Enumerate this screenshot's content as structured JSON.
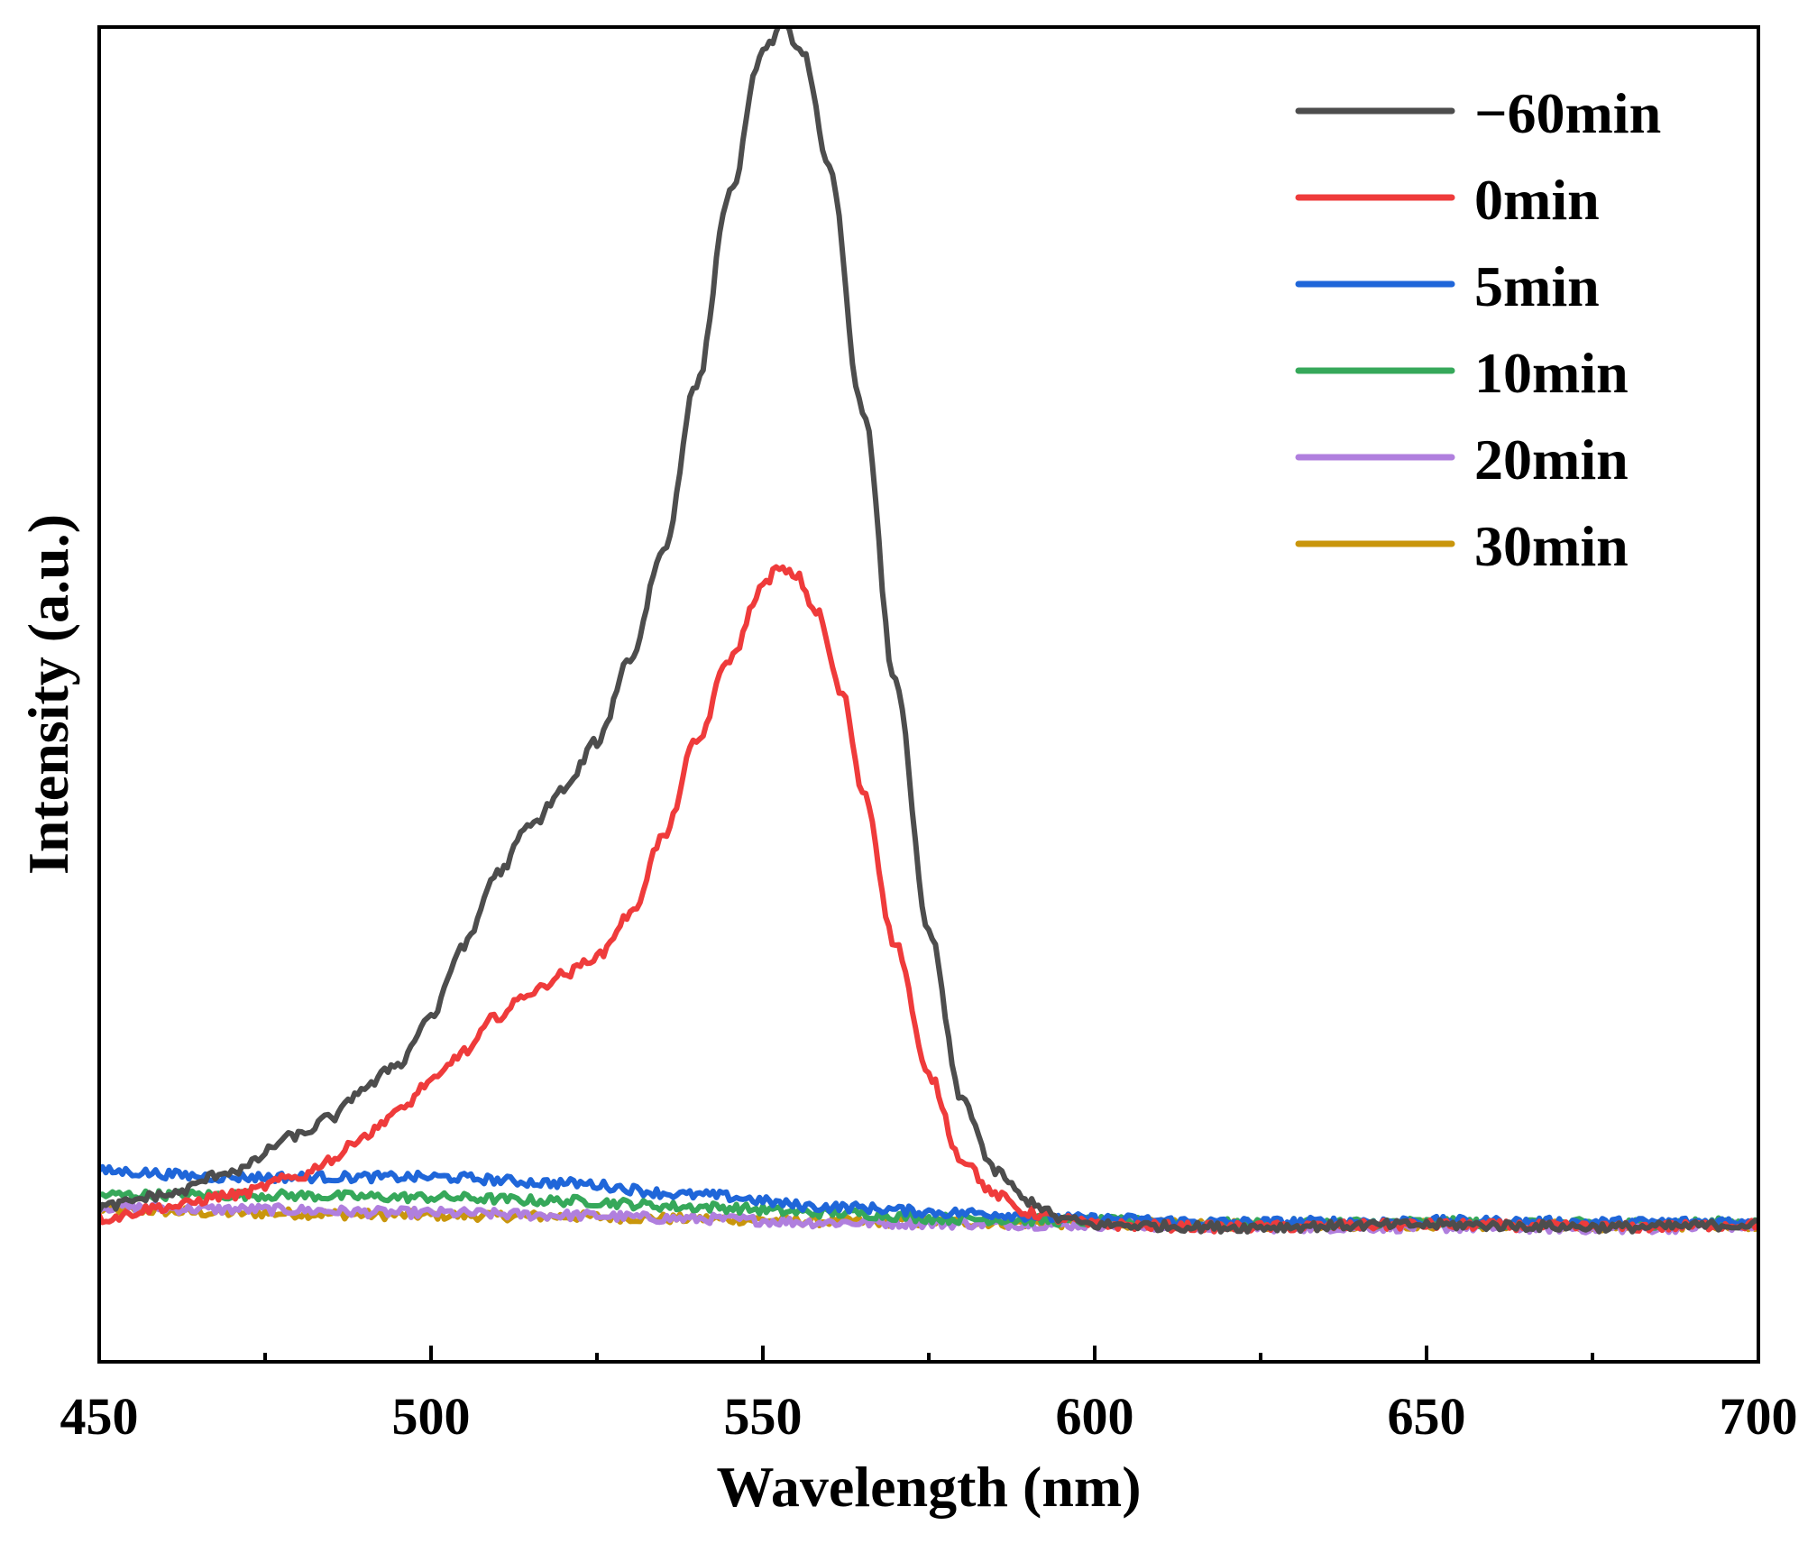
{
  "chart_data": {
    "type": "line",
    "title": "",
    "xlabel": "Wavelength (nm)",
    "ylabel": "Intensity (a.u.)",
    "xlim": [
      450,
      700
    ],
    "ylim": [
      -0.12,
      1.0
    ],
    "x_ticks": [
      450,
      500,
      550,
      600,
      650,
      700
    ],
    "x_tick_labels": [
      "450",
      "500",
      "550",
      "600",
      "650",
      "700"
    ],
    "x_minor_ticks": [
      475,
      525,
      575,
      625,
      675
    ],
    "y_ticks_shown": false,
    "grid": false,
    "legend_position": "top-right",
    "series": [
      {
        "name": "−60min",
        "color": "#4d4d4d",
        "x": [
          450,
          460,
          470,
          480,
          485,
          490,
          495,
          500,
          505,
          510,
          515,
          520,
          525,
          530,
          535,
          540,
          545,
          550,
          553,
          556,
          560,
          565,
          570,
          575,
          580,
          585,
          590,
          595,
          600,
          620,
          650,
          680,
          700
        ],
        "values": [
          0.01,
          0.02,
          0.04,
          0.07,
          0.085,
          0.11,
          0.13,
          0.17,
          0.23,
          0.29,
          0.33,
          0.36,
          0.4,
          0.47,
          0.56,
          0.7,
          0.86,
          0.98,
          1.0,
          0.98,
          0.88,
          0.68,
          0.45,
          0.24,
          0.1,
          0.04,
          0.015,
          0.0,
          -0.005,
          -0.007,
          -0.005,
          -0.007,
          -0.005
        ]
      },
      {
        "name": "0min",
        "color": "#ef3b3b",
        "x": [
          450,
          460,
          470,
          480,
          485,
          490,
          495,
          500,
          505,
          510,
          515,
          520,
          525,
          530,
          535,
          540,
          545,
          550,
          552,
          555,
          558,
          562,
          565,
          570,
          575,
          580,
          585,
          590,
          595,
          600,
          620,
          650,
          680,
          700
        ],
        "values": [
          0.0,
          0.01,
          0.02,
          0.035,
          0.05,
          0.07,
          0.09,
          0.115,
          0.14,
          0.17,
          0.19,
          0.205,
          0.22,
          0.255,
          0.32,
          0.4,
          0.47,
          0.53,
          0.545,
          0.54,
          0.51,
          0.44,
          0.36,
          0.23,
          0.12,
          0.05,
          0.02,
          0.005,
          0.0,
          -0.005,
          -0.007,
          -0.005,
          -0.007,
          -0.005
        ]
      },
      {
        "name": "5min",
        "color": "#1f66d9",
        "x": [
          450,
          470,
          500,
          520,
          540,
          560,
          580,
          600,
          620,
          650,
          680,
          700
        ],
        "values": [
          0.04,
          0.035,
          0.035,
          0.03,
          0.02,
          0.01,
          0.005,
          0.0,
          -0.003,
          -0.002,
          -0.003,
          -0.002
        ]
      },
      {
        "name": "10min",
        "color": "#36a85a",
        "x": [
          450,
          470,
          500,
          520,
          540,
          560,
          580,
          600,
          620,
          650,
          680,
          700
        ],
        "values": [
          0.02,
          0.02,
          0.018,
          0.015,
          0.01,
          0.005,
          0.0,
          -0.002,
          -0.004,
          -0.003,
          -0.004,
          -0.003
        ]
      },
      {
        "name": "20min",
        "color": "#b07fde",
        "x": [
          450,
          470,
          500,
          520,
          540,
          560,
          580,
          600,
          620,
          650,
          680,
          700
        ],
        "values": [
          0.01,
          0.008,
          0.005,
          0.003,
          0.0,
          -0.003,
          -0.004,
          -0.005,
          -0.007,
          -0.007,
          -0.008,
          -0.006
        ]
      },
      {
        "name": "30min",
        "color": "#c9960c",
        "x": [
          450,
          470,
          500,
          520,
          540,
          560,
          580,
          600,
          620,
          650,
          680,
          700
        ],
        "values": [
          0.008,
          0.005,
          0.003,
          0.002,
          0.0,
          -0.002,
          -0.003,
          -0.004,
          -0.005,
          -0.005,
          -0.006,
          -0.005
        ]
      }
    ]
  }
}
